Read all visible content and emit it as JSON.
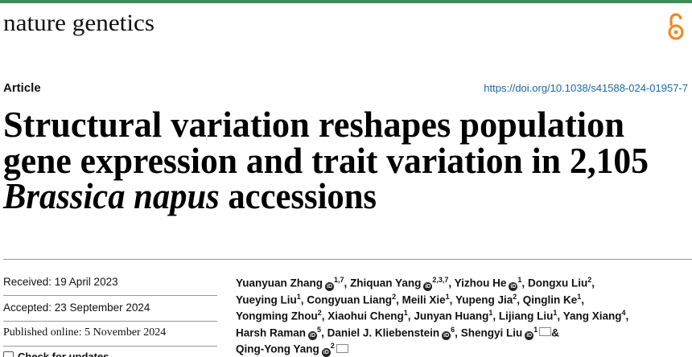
{
  "header": {
    "journal": "nature genetics",
    "article_type": "Article",
    "doi": "https://doi.org/10.1038/s41588-024-01957-7"
  },
  "title": {
    "lines": [
      "Structural variation reshapes population",
      "gene expression and trait variation in 2,105"
    ],
    "italic": "Brassica napus",
    "end": "accessions"
  },
  "dates": [
    {
      "label": "Received: 19 April 2023"
    },
    {
      "label": "Accepted: 23 September 2024"
    },
    {
      "label": "Published online: 5 November 2024",
      "serif": true
    }
  ],
  "check_updates": "Check for updates",
  "authors": [
    [
      {
        "name": "Yuanyuan Zhang",
        "orcid": true,
        "affil": "1,7",
        "sep": ","
      },
      {
        "name": "Zhiquan Yang",
        "orcid": true,
        "affil": "2,3,7",
        "sep": ","
      },
      {
        "name": "Yizhou He",
        "orcid": true,
        "affil": "1",
        "sep": ","
      },
      {
        "name": "Dongxu Liu",
        "affil": "2",
        "sep": ","
      }
    ],
    [
      {
        "name": "Yueying Liu",
        "affil": "1",
        "sep": ","
      },
      {
        "name": "Congyuan Liang",
        "affil": "2",
        "sep": ","
      },
      {
        "name": "Meili Xie",
        "affil": "1",
        "sep": ","
      },
      {
        "name": "Yupeng Jia",
        "affil": "2",
        "sep": ","
      },
      {
        "name": "Qinglin Ke",
        "affil": "1",
        "sep": ","
      }
    ],
    [
      {
        "name": "Yongming Zhou",
        "affil": "2",
        "sep": ","
      },
      {
        "name": "Xiaohui Cheng",
        "affil": "1",
        "sep": ","
      },
      {
        "name": "Junyan Huang",
        "affil": "1",
        "sep": ","
      },
      {
        "name": "Lijiang Liu",
        "affil": "1",
        "sep": ","
      },
      {
        "name": "Yang Xiang",
        "affil": "4",
        "sep": ","
      }
    ],
    [
      {
        "name": "Harsh Raman",
        "orcid": true,
        "affil": "5",
        "sep": ","
      },
      {
        "name": "Daniel J. Kliebenstein",
        "orcid": true,
        "affil": "6",
        "sep": ","
      },
      {
        "name": "Shengyi Liu",
        "orcid": true,
        "affil": "1",
        "mail": true,
        "sep": "&"
      }
    ],
    [
      {
        "name": "Qing-Yong Yang",
        "orcid": true,
        "affil": "2",
        "mail": true
      }
    ]
  ]
}
